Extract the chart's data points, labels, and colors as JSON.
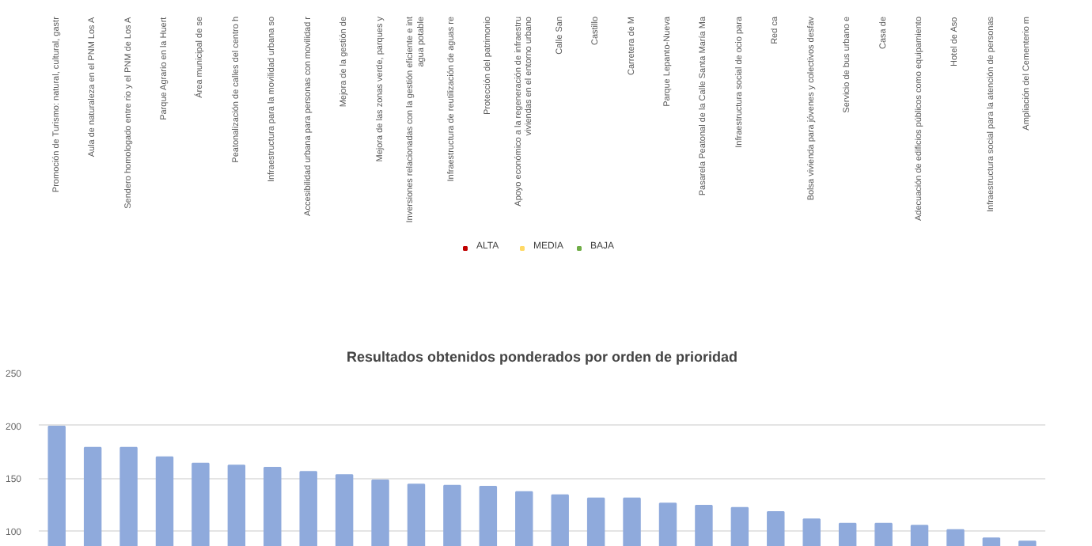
{
  "chart_data": [
    {
      "type": "other",
      "legend": "bottom",
      "categories": [
        "Promoción de Turismo: natural, cultural, gastr",
        "Aula de naturaleza en el PNM Los A",
        "Sendero homologado entre rio y el PNM de Los A",
        "Parque Agrario en la Huert",
        "Área municipal de se",
        "Peatonalización de calles del centro h",
        "Infraestructura para la movilidad urbana so",
        "Accesibilidad urbana para personas con movilidad r",
        "Mejora de la gestión de",
        "Mejora de las zonas verde, parques y",
        "Inversiones relacionadas con la gestión eficiente e int\nagua potable",
        "Infraestructura de reutilización de aguas re",
        "Protección del patrimonio",
        "Apoyo económico a la regeneración de infraestru\nviviendas en el entorno urbano",
        "Calle San",
        "Castillo",
        "Carretera de M",
        "Parque Lepanto-Nueva",
        "Pasarela Peatonal de la Calle Santa María Ma",
        "Infraestructura social de ocio para",
        "Red ca",
        "Bolsa vivienda para jóvenes y colectivos desfav",
        "Servicio de bus urbano e",
        "Casa de",
        "Adecuación de edificios públicos como equipamiento",
        "Hotel de Aso",
        "Infraestructura social para la atención de personas",
        "Ampliación del Cementerio m"
      ],
      "series": [
        {
          "name": "ALTA",
          "color": "#c00000",
          "values": [
            null,
            null,
            null,
            null,
            null,
            null,
            null,
            null,
            null,
            null,
            null,
            null,
            null,
            null,
            null,
            null,
            null,
            null,
            null,
            null,
            null,
            null,
            null,
            null,
            null,
            null,
            null,
            null
          ]
        },
        {
          "name": "MEDIA",
          "color": "#ffd966",
          "values": [
            null,
            null,
            null,
            null,
            null,
            null,
            null,
            null,
            null,
            null,
            null,
            null,
            null,
            null,
            null,
            null,
            null,
            null,
            null,
            null,
            null,
            null,
            null,
            null,
            null,
            null,
            null,
            null
          ]
        },
        {
          "name": "BAJA",
          "color": "#70ad47",
          "values": [
            null,
            null,
            null,
            null,
            null,
            null,
            null,
            null,
            null,
            null,
            null,
            null,
            null,
            null,
            null,
            null,
            null,
            null,
            null,
            null,
            null,
            null,
            null,
            null,
            null,
            null,
            null,
            null
          ]
        }
      ]
    },
    {
      "type": "bar",
      "title": "Resultados obtenidos ponderados por orden de prioridad",
      "tick_labels": "y",
      "grid": "y",
      "categories": [
        null,
        null,
        null,
        null,
        null,
        null,
        null,
        null,
        null,
        null,
        null,
        null,
        null,
        null,
        null,
        null,
        null,
        null,
        null,
        null,
        null,
        null,
        null,
        null,
        null,
        null,
        null,
        null
      ],
      "color": "#8faadc",
      "values": [
        199,
        179,
        179,
        170,
        164,
        162,
        160,
        156,
        153,
        148,
        144,
        143,
        142,
        137,
        134,
        131,
        131,
        126,
        124,
        122,
        118,
        111,
        107,
        107,
        105,
        101,
        93,
        90
      ],
      "ylim": [
        85,
        250
      ],
      "yticks": [
        100,
        150,
        200,
        250
      ]
    }
  ]
}
